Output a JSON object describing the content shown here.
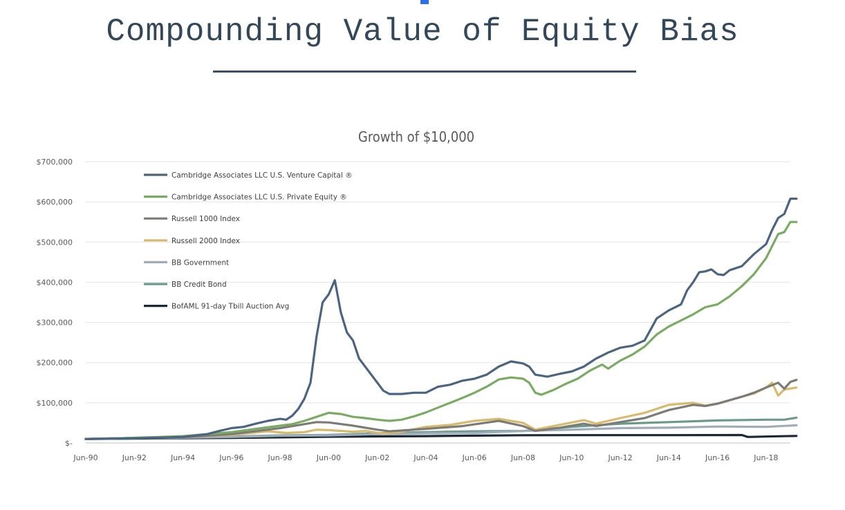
{
  "slide": {
    "title": "Compounding Value of Equity Bias"
  },
  "chart_data": {
    "type": "line",
    "title": "Growth of $10,000",
    "xlabel": "",
    "ylabel": "",
    "ylim": [
      0,
      700000
    ],
    "xlim": [
      1990.5,
      2019.5
    ],
    "y_ticks": [
      0,
      100000,
      200000,
      300000,
      400000,
      500000,
      600000,
      700000
    ],
    "y_tick_labels": [
      "$-",
      "$100,000",
      "$200,000",
      "$300,000",
      "$400,000",
      "$500,000",
      "$600,000",
      "$700,000"
    ],
    "x_ticks": [
      1990.5,
      1992.5,
      1994.5,
      1996.5,
      1998.5,
      2000.5,
      2002.5,
      2004.5,
      2006.5,
      2008.5,
      2010.5,
      2012.5,
      2014.5,
      2016.5,
      2018.5
    ],
    "x_tick_labels": [
      "Jun-90",
      "Jun-92",
      "Jun-94",
      "Jun-96",
      "Jun-98",
      "Jun-00",
      "Jun-02",
      "Jun-04",
      "Jun-06",
      "Jun-08",
      "Jun-10",
      "Jun-12",
      "Jun-14",
      "Jun-16",
      "Jun-18"
    ],
    "grid": true,
    "legend_position": "top-left",
    "series": [
      {
        "name": "Cambridge Associates LLC U.S. Venture Capital ®",
        "color": "#4a6482",
        "points": [
          [
            1990.5,
            10000
          ],
          [
            1992.0,
            11000
          ],
          [
            1993.5,
            13000
          ],
          [
            1994.5,
            15000
          ],
          [
            1995.5,
            22000
          ],
          [
            1996.0,
            30000
          ],
          [
            1996.5,
            37000
          ],
          [
            1997.0,
            40000
          ],
          [
            1997.5,
            48000
          ],
          [
            1998.0,
            55000
          ],
          [
            1998.5,
            60000
          ],
          [
            1998.75,
            58000
          ],
          [
            1999.0,
            68000
          ],
          [
            1999.25,
            85000
          ],
          [
            1999.5,
            110000
          ],
          [
            1999.75,
            150000
          ],
          [
            2000.0,
            265000
          ],
          [
            2000.25,
            350000
          ],
          [
            2000.5,
            370000
          ],
          [
            2000.75,
            405000
          ],
          [
            2001.0,
            325000
          ],
          [
            2001.25,
            275000
          ],
          [
            2001.5,
            255000
          ],
          [
            2001.75,
            210000
          ],
          [
            2002.0,
            190000
          ],
          [
            2002.5,
            150000
          ],
          [
            2002.75,
            130000
          ],
          [
            2003.0,
            122000
          ],
          [
            2003.5,
            122000
          ],
          [
            2004.0,
            125000
          ],
          [
            2004.5,
            125000
          ],
          [
            2005.0,
            140000
          ],
          [
            2005.5,
            145000
          ],
          [
            2006.0,
            155000
          ],
          [
            2006.5,
            160000
          ],
          [
            2007.0,
            170000
          ],
          [
            2007.5,
            190000
          ],
          [
            2008.0,
            203000
          ],
          [
            2008.5,
            198000
          ],
          [
            2008.75,
            190000
          ],
          [
            2009.0,
            170000
          ],
          [
            2009.5,
            165000
          ],
          [
            2010.0,
            172000
          ],
          [
            2010.5,
            178000
          ],
          [
            2011.0,
            190000
          ],
          [
            2011.5,
            210000
          ],
          [
            2012.0,
            225000
          ],
          [
            2012.5,
            237000
          ],
          [
            2013.0,
            242000
          ],
          [
            2013.5,
            255000
          ],
          [
            2014.0,
            310000
          ],
          [
            2014.5,
            330000
          ],
          [
            2015.0,
            345000
          ],
          [
            2015.25,
            380000
          ],
          [
            2015.5,
            400000
          ],
          [
            2015.75,
            425000
          ],
          [
            2016.0,
            427000
          ],
          [
            2016.25,
            432000
          ],
          [
            2016.5,
            420000
          ],
          [
            2016.75,
            418000
          ],
          [
            2017.0,
            430000
          ],
          [
            2017.5,
            440000
          ],
          [
            2018.0,
            470000
          ],
          [
            2018.5,
            495000
          ],
          [
            2018.75,
            530000
          ],
          [
            2019.0,
            560000
          ],
          [
            2019.25,
            570000
          ],
          [
            2019.5,
            608000
          ],
          [
            2019.75,
            608000
          ]
        ]
      },
      {
        "name": "Cambridge Associates LLC U.S. Private Equity ®",
        "color": "#7aab63",
        "points": [
          [
            1990.5,
            10000
          ],
          [
            1992.0,
            12000
          ],
          [
            1993.5,
            15000
          ],
          [
            1994.5,
            17000
          ],
          [
            1995.5,
            22000
          ],
          [
            1996.5,
            27000
          ],
          [
            1997.5,
            35000
          ],
          [
            1998.5,
            43000
          ],
          [
            1999.0,
            47000
          ],
          [
            1999.5,
            55000
          ],
          [
            2000.0,
            65000
          ],
          [
            2000.5,
            75000
          ],
          [
            2001.0,
            72000
          ],
          [
            2001.5,
            65000
          ],
          [
            2002.0,
            62000
          ],
          [
            2002.5,
            58000
          ],
          [
            2003.0,
            55000
          ],
          [
            2003.5,
            58000
          ],
          [
            2004.0,
            66000
          ],
          [
            2004.5,
            76000
          ],
          [
            2005.0,
            88000
          ],
          [
            2005.5,
            100000
          ],
          [
            2006.0,
            112000
          ],
          [
            2006.5,
            125000
          ],
          [
            2007.0,
            140000
          ],
          [
            2007.5,
            158000
          ],
          [
            2008.0,
            163000
          ],
          [
            2008.5,
            160000
          ],
          [
            2008.75,
            150000
          ],
          [
            2009.0,
            125000
          ],
          [
            2009.25,
            120000
          ],
          [
            2009.75,
            132000
          ],
          [
            2010.25,
            147000
          ],
          [
            2010.75,
            160000
          ],
          [
            2011.25,
            180000
          ],
          [
            2011.75,
            195000
          ],
          [
            2012.0,
            185000
          ],
          [
            2012.5,
            205000
          ],
          [
            2013.0,
            220000
          ],
          [
            2013.5,
            240000
          ],
          [
            2014.0,
            270000
          ],
          [
            2014.5,
            290000
          ],
          [
            2015.0,
            305000
          ],
          [
            2015.5,
            320000
          ],
          [
            2016.0,
            338000
          ],
          [
            2016.5,
            345000
          ],
          [
            2017.0,
            365000
          ],
          [
            2017.5,
            390000
          ],
          [
            2018.0,
            420000
          ],
          [
            2018.5,
            460000
          ],
          [
            2018.75,
            490000
          ],
          [
            2019.0,
            520000
          ],
          [
            2019.25,
            525000
          ],
          [
            2019.5,
            550000
          ],
          [
            2019.75,
            550000
          ]
        ]
      },
      {
        "name": "Russell 1000 Index",
        "color": "#7d7b77",
        "points": [
          [
            1990.5,
            10000
          ],
          [
            1992.5,
            12500
          ],
          [
            1994.5,
            14500
          ],
          [
            1996.5,
            22000
          ],
          [
            1998.5,
            37000
          ],
          [
            2000.0,
            52000
          ],
          [
            2000.5,
            51000
          ],
          [
            2001.5,
            43000
          ],
          [
            2002.5,
            33000
          ],
          [
            2003.0,
            29000
          ],
          [
            2004.5,
            35000
          ],
          [
            2006.0,
            42000
          ],
          [
            2007.5,
            55000
          ],
          [
            2008.5,
            42000
          ],
          [
            2009.0,
            30000
          ],
          [
            2010.0,
            38000
          ],
          [
            2011.0,
            48000
          ],
          [
            2011.5,
            42000
          ],
          [
            2012.5,
            52000
          ],
          [
            2013.5,
            62000
          ],
          [
            2014.5,
            82000
          ],
          [
            2015.5,
            95000
          ],
          [
            2016.0,
            92000
          ],
          [
            2016.5,
            98000
          ],
          [
            2017.5,
            115000
          ],
          [
            2018.0,
            125000
          ],
          [
            2018.5,
            138000
          ],
          [
            2019.0,
            150000
          ],
          [
            2019.25,
            135000
          ],
          [
            2019.5,
            152000
          ],
          [
            2019.75,
            157000
          ]
        ]
      },
      {
        "name": "Russell 2000 Index",
        "color": "#d9b96b",
        "points": [
          [
            1990.5,
            10000
          ],
          [
            1992.5,
            12000
          ],
          [
            1994.5,
            15000
          ],
          [
            1996.5,
            20000
          ],
          [
            1998.0,
            29000
          ],
          [
            1998.75,
            25000
          ],
          [
            1999.5,
            27000
          ],
          [
            2000.0,
            33000
          ],
          [
            2000.5,
            32000
          ],
          [
            2001.5,
            28000
          ],
          [
            2002.0,
            30000
          ],
          [
            2002.75,
            23000
          ],
          [
            2003.5,
            28000
          ],
          [
            2004.5,
            40000
          ],
          [
            2005.5,
            45000
          ],
          [
            2006.5,
            55000
          ],
          [
            2007.5,
            60000
          ],
          [
            2008.5,
            50000
          ],
          [
            2009.0,
            33000
          ],
          [
            2010.0,
            45000
          ],
          [
            2011.0,
            57000
          ],
          [
            2011.5,
            48000
          ],
          [
            2012.5,
            62000
          ],
          [
            2013.5,
            75000
          ],
          [
            2014.5,
            95000
          ],
          [
            2015.5,
            100000
          ],
          [
            2016.0,
            93000
          ],
          [
            2016.5,
            97000
          ],
          [
            2017.5,
            115000
          ],
          [
            2018.0,
            123000
          ],
          [
            2018.5,
            138000
          ],
          [
            2018.75,
            150000
          ],
          [
            2019.0,
            118000
          ],
          [
            2019.25,
            133000
          ],
          [
            2019.75,
            138000
          ]
        ]
      },
      {
        "name": "BB Government",
        "color": "#9eadb7",
        "points": [
          [
            1990.5,
            10000
          ],
          [
            1992.5,
            12000
          ],
          [
            1994.5,
            13000
          ],
          [
            1996.5,
            15000
          ],
          [
            1998.5,
            18000
          ],
          [
            2000.5,
            19000
          ],
          [
            2002.5,
            22000
          ],
          [
            2004.5,
            24000
          ],
          [
            2006.5,
            25000
          ],
          [
            2008.5,
            30000
          ],
          [
            2010.5,
            33000
          ],
          [
            2012.5,
            37000
          ],
          [
            2014.5,
            38000
          ],
          [
            2016.5,
            41000
          ],
          [
            2018.5,
            40000
          ],
          [
            2019.75,
            44000
          ]
        ]
      },
      {
        "name": "BB Credit Bond",
        "color": "#6a9a8b",
        "points": [
          [
            1990.5,
            10000
          ],
          [
            1992.5,
            12500
          ],
          [
            1994.5,
            13500
          ],
          [
            1996.5,
            16000
          ],
          [
            1998.5,
            19000
          ],
          [
            2000.5,
            20000
          ],
          [
            2002.5,
            24000
          ],
          [
            2004.5,
            27000
          ],
          [
            2006.5,
            29000
          ],
          [
            2008.5,
            30000
          ],
          [
            2009.5,
            35000
          ],
          [
            2010.5,
            40000
          ],
          [
            2012.5,
            48000
          ],
          [
            2014.5,
            52000
          ],
          [
            2016.5,
            56000
          ],
          [
            2018.5,
            58000
          ],
          [
            2019.25,
            58000
          ],
          [
            2019.75,
            63000
          ]
        ]
      },
      {
        "name": "BofAML 91-day Tbill Auction Avg",
        "color": "#1b2838",
        "points": [
          [
            1990.5,
            10000
          ],
          [
            1992.5,
            11000
          ],
          [
            1994.5,
            11800
          ],
          [
            1996.5,
            12800
          ],
          [
            1998.5,
            14000
          ],
          [
            2000.5,
            15500
          ],
          [
            2002.5,
            16300
          ],
          [
            2004.5,
            17000
          ],
          [
            2006.5,
            18300
          ],
          [
            2008.5,
            19300
          ],
          [
            2010.5,
            19400
          ],
          [
            2012.5,
            19400
          ],
          [
            2014.5,
            19500
          ],
          [
            2016.5,
            19600
          ],
          [
            2017.5,
            19700
          ],
          [
            2017.75,
            15000
          ],
          [
            2018.5,
            16000
          ],
          [
            2019.75,
            17500
          ]
        ]
      }
    ]
  }
}
